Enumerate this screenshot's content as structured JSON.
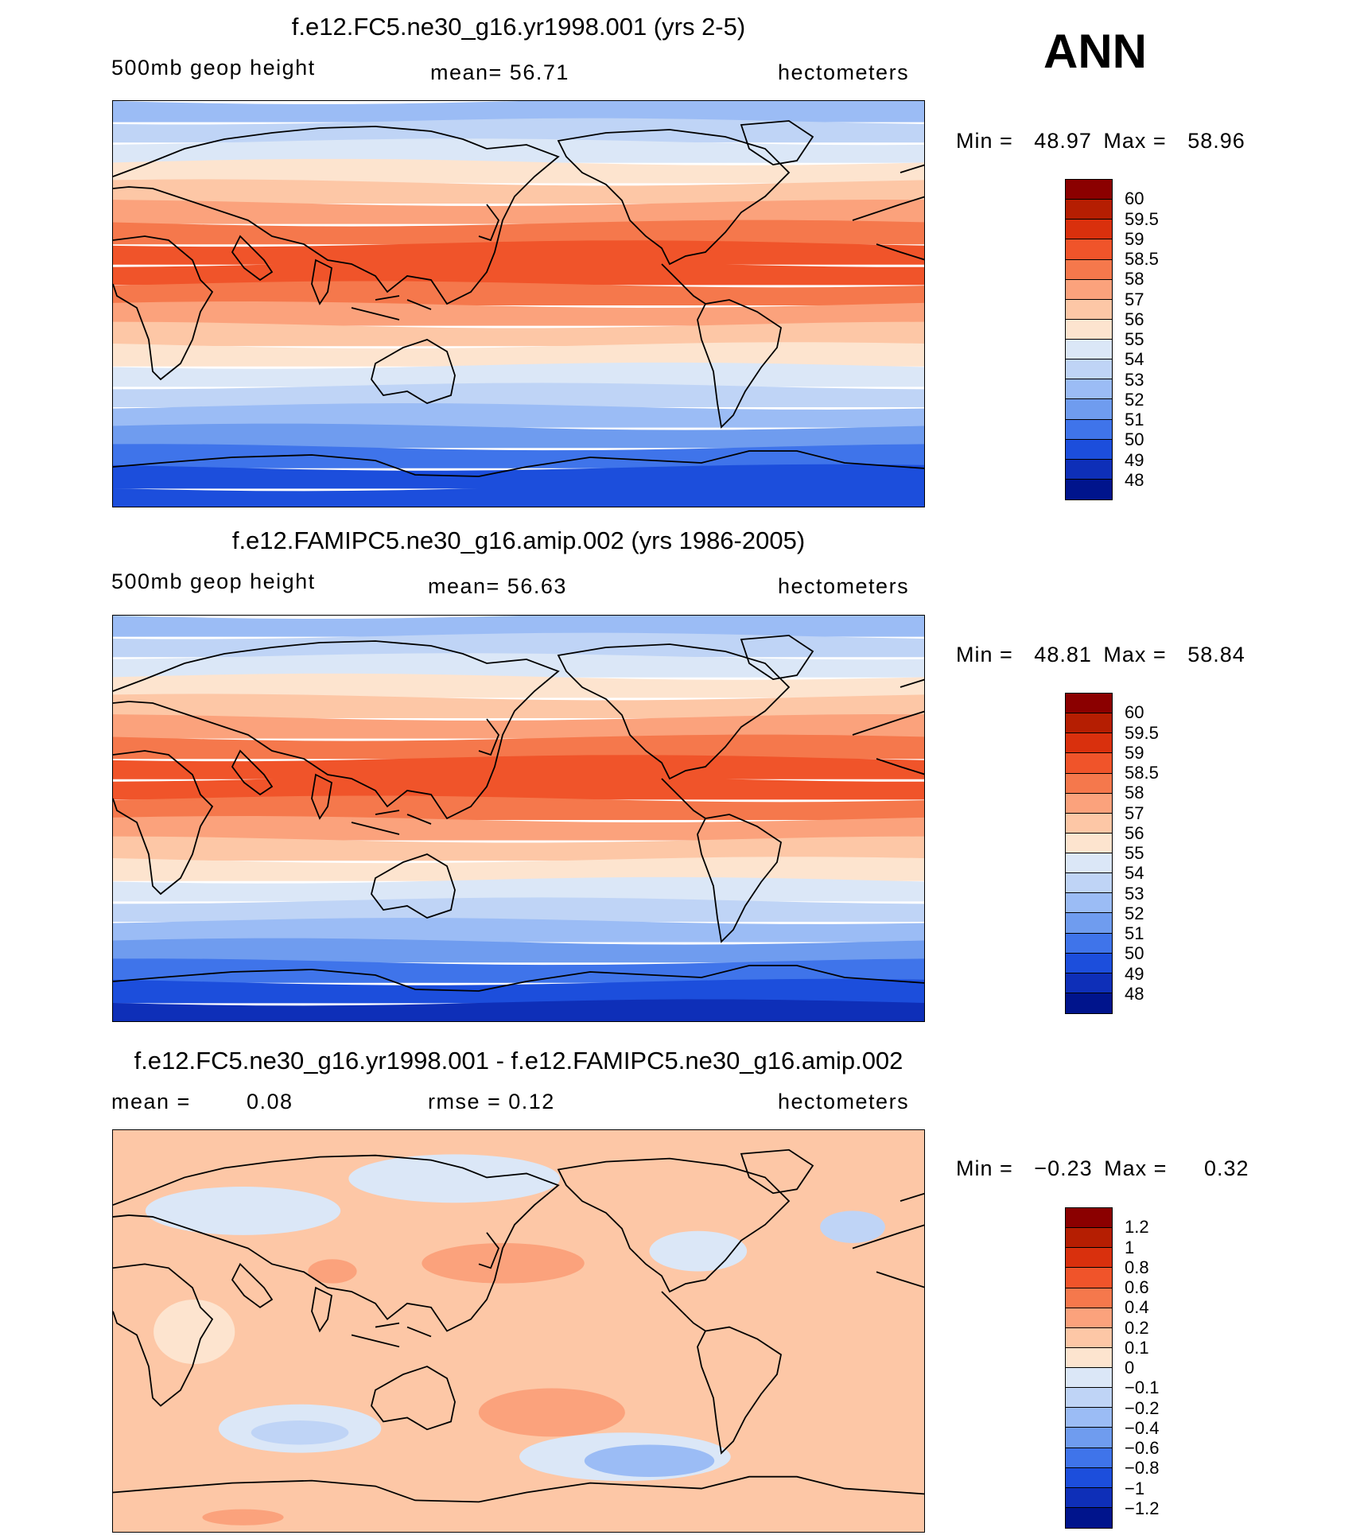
{
  "season": "ANN",
  "panels": [
    {
      "title": "f.e12.FC5.ne30_g16.yr1998.001 (yrs 2-5)",
      "variable": "500mb geop height",
      "stat_text": "mean=   56.71",
      "units": "hectometers",
      "min_label": "Min =",
      "min_value": "48.97",
      "max_label": "Max =",
      "max_value": "58.96",
      "colorbar_labels": [
        "60",
        "59.5",
        "59",
        "58.5",
        "58",
        "57",
        "56",
        "55",
        "54",
        "53",
        "52",
        "51",
        "50",
        "49",
        "48"
      ],
      "colorbar_colors": [
        "#8b0000",
        "#b51e02",
        "#d9300d",
        "#f0542a",
        "#f5784c",
        "#fba27c",
        "#fdc7a6",
        "#fde4cf",
        "#dbe7f7",
        "#bfd4f6",
        "#9bbcf5",
        "#6f9cef",
        "#3f74ea",
        "#1c4edc",
        "#0e2fb8",
        "#00148c"
      ],
      "map_bands": [
        "#9bbcf5",
        "#bfd4f6",
        "#dbe7f7",
        "#fde4cf",
        "#fdc7a6",
        "#fba27c",
        "#f5784c",
        "#f0542a",
        "#f0542a",
        "#f5784c",
        "#fba27c",
        "#fdc7a6",
        "#fde4cf",
        "#dbe7f7",
        "#bfd4f6",
        "#9bbcf5",
        "#6f9cef",
        "#3f74ea",
        "#1c4edc",
        "#1c4edc"
      ]
    },
    {
      "title": "f.e12.FAMIPC5.ne30_g16.amip.002 (yrs 1986-2005)",
      "variable": "500mb geop height",
      "stat_text": "mean=   56.63",
      "units": "hectometers",
      "min_label": "Min =",
      "min_value": "48.81",
      "max_label": "Max =",
      "max_value": "58.84",
      "colorbar_labels": [
        "60",
        "59.5",
        "59",
        "58.5",
        "58",
        "57",
        "56",
        "55",
        "54",
        "53",
        "52",
        "51",
        "50",
        "49",
        "48"
      ],
      "colorbar_colors": [
        "#8b0000",
        "#b51e02",
        "#d9300d",
        "#f0542a",
        "#f5784c",
        "#fba27c",
        "#fdc7a6",
        "#fde4cf",
        "#dbe7f7",
        "#bfd4f6",
        "#9bbcf5",
        "#6f9cef",
        "#3f74ea",
        "#1c4edc",
        "#0e2fb8",
        "#00148c"
      ],
      "map_bands": [
        "#9bbcf5",
        "#bfd4f6",
        "#dbe7f7",
        "#fde4cf",
        "#fdc7a6",
        "#fba27c",
        "#f5784c",
        "#f0542a",
        "#f0542a",
        "#f5784c",
        "#fba27c",
        "#fdc7a6",
        "#fde4cf",
        "#dbe7f7",
        "#bfd4f6",
        "#9bbcf5",
        "#6f9cef",
        "#3f74ea",
        "#1c4edc",
        "#0e2fb8"
      ]
    },
    {
      "title": "f.e12.FC5.ne30_g16.yr1998.001 - f.e12.FAMIPC5.ne30_g16.amip.002",
      "variable": "mean =",
      "stat_left_value": "0.08",
      "stat_text": "rmse =     0.12",
      "units": "hectometers",
      "min_label": "Min =",
      "min_value": "−0.23",
      "max_label": "Max =",
      "max_value": "0.32",
      "colorbar_labels": [
        "1.2",
        "1",
        "0.8",
        "0.6",
        "0.4",
        "0.2",
        "0.1",
        "0",
        "−0.1",
        "−0.2",
        "−0.4",
        "−0.6",
        "−0.8",
        "−1",
        "−1.2"
      ],
      "colorbar_colors": [
        "#8b0000",
        "#b51e02",
        "#d9300d",
        "#f0542a",
        "#f5784c",
        "#fba27c",
        "#fdc7a6",
        "#fde4cf",
        "#dbe7f7",
        "#bfd4f6",
        "#9bbcf5",
        "#6f9cef",
        "#3f74ea",
        "#1c4edc",
        "#0e2fb8",
        "#00148c"
      ],
      "map_bands": [
        "#fdc7a6"
      ]
    }
  ]
}
